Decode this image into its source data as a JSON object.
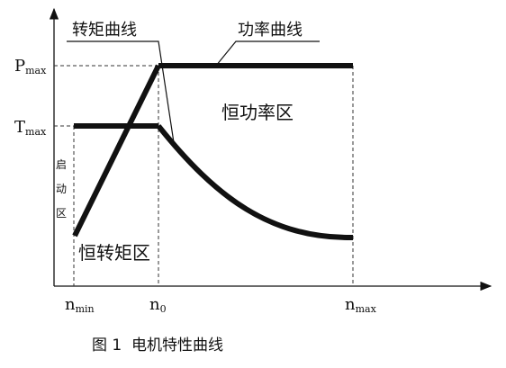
{
  "diagram": {
    "y_axis_labels": {
      "p_max": {
        "main": "P",
        "sub": "max"
      },
      "t_max": {
        "main": "T",
        "sub": "max"
      }
    },
    "x_axis_labels": {
      "n_min": {
        "main": "n",
        "sub": "min"
      },
      "n_0": {
        "main": "n",
        "sub": "0"
      },
      "n_max": {
        "main": "n",
        "sub": "max"
      }
    },
    "curve_labels": {
      "torque_curve": "转矩曲线",
      "power_curve": "功率曲线"
    },
    "region_labels": {
      "constant_power": "恒功率区",
      "constant_torque": "恒转矩区",
      "startup": [
        "启",
        "动",
        "区"
      ]
    },
    "caption": "图 1  电机特性曲线",
    "colors": {
      "line": "#111111",
      "dashed": "#333333"
    }
  }
}
